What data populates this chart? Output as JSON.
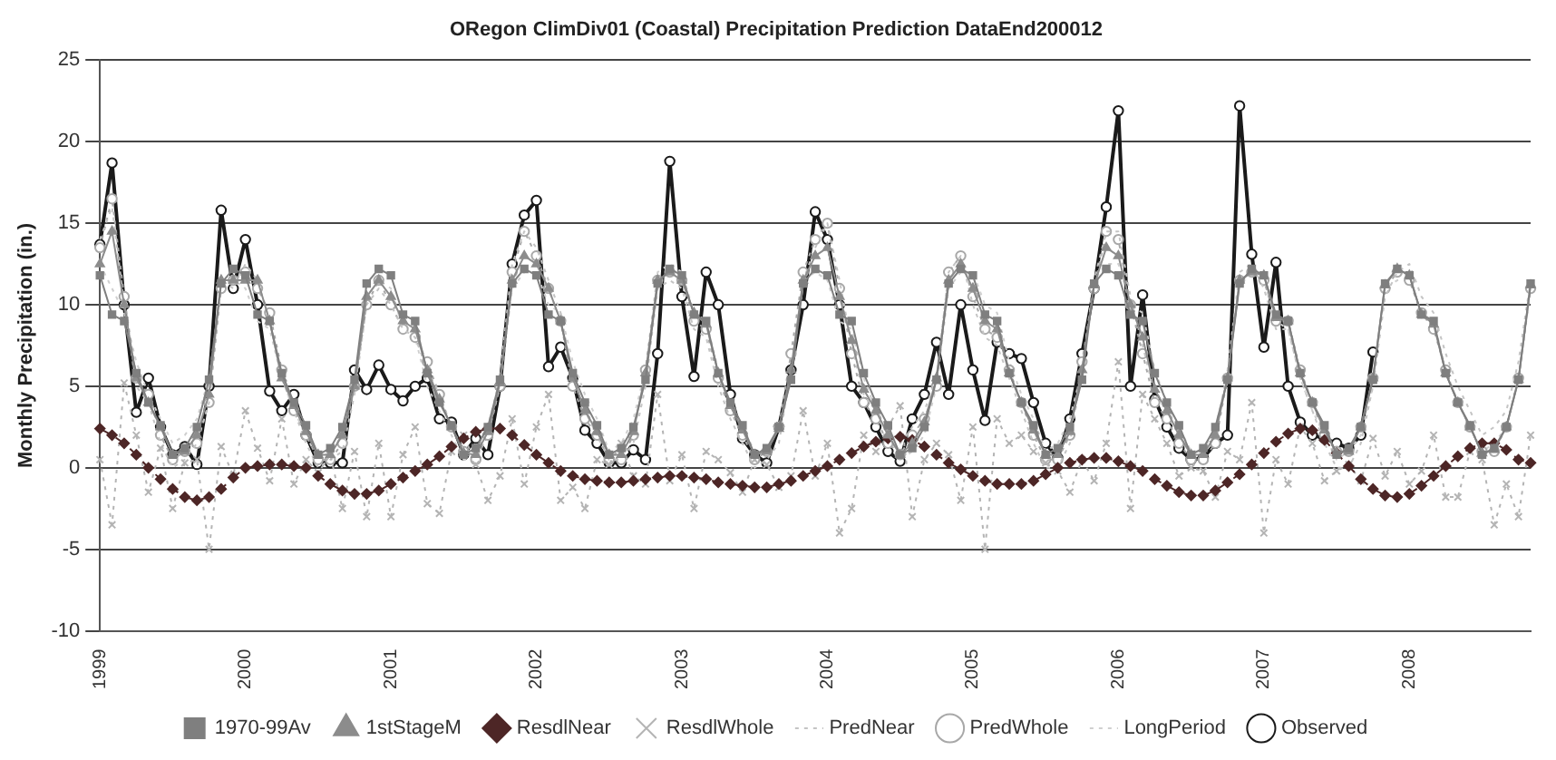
{
  "chart_data": {
    "type": "line",
    "title": "ORegon ClimDiv01 (Coastal) Precipitation Prediction DataEnd200012",
    "ylabel": "Monthly Precipitation (in.)",
    "categories": [
      "1999",
      null,
      null,
      null,
      null,
      null,
      null,
      null,
      null,
      null,
      null,
      null,
      "2000",
      null,
      null,
      null,
      null,
      null,
      null,
      null,
      null,
      null,
      null,
      null,
      "2001",
      null,
      null,
      null,
      null,
      null,
      null,
      null,
      null,
      null,
      null,
      null,
      "2002",
      null,
      null,
      null,
      null,
      null,
      null,
      null,
      null,
      null,
      null,
      null,
      "2003",
      null,
      null,
      null,
      null,
      null,
      null,
      null,
      null,
      null,
      null,
      null,
      "2004",
      null,
      null,
      null,
      null,
      null,
      null,
      null,
      null,
      null,
      null,
      null,
      "2005",
      null,
      null,
      null,
      null,
      null,
      null,
      null,
      null,
      null,
      null,
      null,
      "2006",
      null,
      null,
      null,
      null,
      null,
      null,
      null,
      null,
      null,
      null,
      null,
      "2007",
      null,
      null,
      null,
      null,
      null,
      null,
      null,
      null,
      null,
      null,
      null,
      "2008",
      null,
      null,
      null,
      null,
      null,
      null,
      null,
      null,
      null,
      null
    ],
    "ylim": [
      -10,
      25
    ],
    "yticks": [
      -10,
      -5,
      0,
      5,
      10,
      15,
      20,
      25
    ],
    "grid": "y",
    "legend": "bottom",
    "series": [
      {
        "name": "1970-99Av",
        "color": "#7f7f7f",
        "marker": "square",
        "line_style": "solid",
        "values": [
          11.8,
          9.4,
          9.0,
          5.8,
          4.0,
          2.6,
          0.8,
          1.2,
          2.5,
          5.4,
          11.3,
          12.2,
          11.8,
          9.4,
          9.0,
          5.8,
          4.0,
          2.6,
          0.8,
          1.2,
          2.5,
          5.4,
          11.3,
          12.2,
          11.8,
          9.4,
          9.0,
          5.8,
          4.0,
          2.6,
          0.8,
          1.2,
          2.5,
          5.4,
          11.3,
          12.2,
          11.8,
          9.4,
          9.0,
          5.8,
          4.0,
          2.6,
          0.8,
          1.2,
          2.5,
          5.4,
          11.3,
          12.2,
          11.8,
          9.4,
          9.0,
          5.8,
          4.0,
          2.6,
          0.8,
          1.2,
          2.5,
          5.4,
          11.3,
          12.2,
          11.8,
          9.4,
          9.0,
          5.8,
          4.0,
          2.6,
          0.8,
          1.2,
          2.5,
          5.4,
          11.3,
          12.2,
          11.8,
          9.4,
          9.0,
          5.8,
          4.0,
          2.6,
          0.8,
          1.2,
          2.5,
          5.4,
          11.3,
          12.2,
          11.8,
          9.4,
          9.0,
          5.8,
          4.0,
          2.6,
          0.8,
          1.2,
          2.5,
          5.4,
          11.3,
          12.2,
          11.8,
          9.4,
          9.0,
          5.8,
          4.0,
          2.6,
          0.8,
          1.2,
          2.5,
          5.4,
          11.3,
          12.2,
          11.8,
          9.4,
          9.0,
          5.8,
          4.0,
          2.6,
          0.8,
          1.2,
          2.5,
          5.4,
          11.3
        ]
      },
      {
        "name": "1stStageM",
        "color": "#8c8c8c",
        "marker": "triangle",
        "line_style": "solid",
        "values": [
          12.5,
          14.5,
          10.0,
          5.5,
          4.0,
          2.5,
          0.8,
          1.0,
          2.0,
          4.5,
          11.5,
          11.5,
          11.5,
          11.5,
          9.0,
          5.5,
          3.8,
          2.2,
          0.8,
          0.8,
          2.0,
          5.0,
          10.5,
          11.5,
          10.5,
          9.0,
          8.5,
          6.0,
          4.2,
          2.5,
          0.9,
          0.8,
          2.2,
          5.2,
          11.5,
          13.0,
          12.5,
          11.0,
          9.0,
          5.5,
          3.5,
          2.2,
          0.8,
          0.8,
          2.2,
          5.8,
          11.5,
          12.0,
          11.5,
          9.5,
          8.8,
          5.8,
          3.8,
          2.3,
          0.8,
          1.0,
          2.4,
          6.0,
          11.5,
          13.0,
          13.5,
          10.5,
          7.8,
          4.8,
          3.5,
          2.0,
          0.8,
          1.5,
          2.8,
          5.5,
          11.5,
          12.5,
          11.0,
          9.0,
          8.5,
          5.8,
          4.0,
          2.3,
          0.8,
          0.8,
          2.2,
          6.0,
          11.2,
          13.5,
          13.0,
          10.0,
          8.0,
          4.8,
          3.5,
          2.0,
          0.8,
          0.8,
          2.0,
          5.5,
          11.5,
          12.0,
          11.8,
          9.2,
          9.0,
          5.8,
          4.0,
          2.3,
          0.9,
          1.0,
          2.5,
          5.5,
          11.2,
          12.2,
          11.8,
          9.4,
          8.8,
          5.8,
          4.0,
          2.5,
          0.9,
          1.1,
          2.5,
          5.4,
          11.2
        ]
      },
      {
        "name": "ResdlNear",
        "color": "#4d2626",
        "marker": "diamond",
        "line_style": "dashed",
        "values": [
          2.4,
          2.0,
          1.5,
          0.8,
          0,
          -0.7,
          -1.3,
          -1.8,
          -2.0,
          -1.8,
          -1.3,
          -0.6,
          0,
          0.1,
          0.2,
          0.2,
          0.1,
          0,
          -0.5,
          -1.0,
          -1.4,
          -1.6,
          -1.6,
          -1.4,
          -1.0,
          -0.6,
          -0.2,
          0.2,
          0.7,
          1.3,
          1.8,
          2.2,
          2.4,
          2.4,
          2.0,
          1.4,
          0.8,
          0.3,
          -0.2,
          -0.5,
          -0.7,
          -0.8,
          -0.9,
          -0.9,
          -0.8,
          -0.7,
          -0.6,
          -0.5,
          -0.5,
          -0.6,
          -0.7,
          -0.9,
          -1.0,
          -1.1,
          -1.2,
          -1.2,
          -1.0,
          -0.8,
          -0.5,
          -0.2,
          0.1,
          0.5,
          0.9,
          1.3,
          1.6,
          1.8,
          1.9,
          1.7,
          1.3,
          0.8,
          0.3,
          -0.1,
          -0.5,
          -0.8,
          -1.0,
          -1.0,
          -1.0,
          -0.8,
          -0.4,
          0,
          0.3,
          0.5,
          0.6,
          0.6,
          0.4,
          0.1,
          -0.2,
          -0.7,
          -1.1,
          -1.5,
          -1.7,
          -1.7,
          -1.4,
          -0.9,
          -0.4,
          0.2,
          0.9,
          1.6,
          2.1,
          2.4,
          2.3,
          1.7,
          0.9,
          0.1,
          -0.7,
          -1.3,
          -1.7,
          -1.8,
          -1.6,
          -1.1,
          -0.5,
          0.1,
          0.7,
          1.2,
          1.5,
          1.5,
          1.1,
          0.5,
          0.3
        ]
      },
      {
        "name": "ResdlWhole",
        "color": "#b4b4b4",
        "marker": "cross",
        "line_style": "dotted",
        "values": [
          0.5,
          -3.5,
          5.2,
          2.0,
          -1.5,
          1.2,
          -2.5,
          0.3,
          0.5,
          -5.0,
          1.3,
          -0.5,
          3.5,
          1.2,
          -0.8,
          3.0,
          -1.0,
          0.5,
          -0.3,
          0.8,
          -2.5,
          1.0,
          -3.0,
          1.5,
          -3.0,
          0.8,
          2.5,
          -2.2,
          -2.8,
          1.0,
          2.0,
          0.2,
          -2.0,
          -0.5,
          3.0,
          -1.0,
          2.5,
          4.5,
          -2.0,
          -1.2,
          -2.5,
          0.5,
          0.2,
          1.5,
          -0.5,
          -1.0,
          4.5,
          -0.8,
          0.8,
          -2.5,
          1.0,
          0.5,
          -0.3,
          -1.5,
          0.5,
          0.2,
          -1.2,
          -0.5,
          3.5,
          -0.5,
          1.5,
          -4.0,
          -2.5,
          2.0,
          1.0,
          2.5,
          3.8,
          -3.0,
          0.5,
          1.5,
          0.8,
          -2.0,
          2.5,
          -5.0,
          3.0,
          1.5,
          2.0,
          1.0,
          0.3,
          -0.2,
          -1.5,
          0.5,
          -0.8,
          1.5,
          6.5,
          -2.5,
          4.5,
          3.0,
          1.5,
          -0.5,
          0.0,
          -0.2,
          -1.8,
          1.0,
          0.5,
          4.0,
          -4.0,
          0.5,
          -1.0,
          2.5,
          1.5,
          -0.8,
          -0.2,
          0.2,
          -0.8,
          1.8,
          -0.5,
          1.0,
          -1.0,
          -0.2,
          2.0,
          -1.8,
          -1.8,
          1.0,
          0.5,
          -3.5,
          -1.0,
          -3.0,
          2.0
        ]
      },
      {
        "name": "PredNear",
        "color": "#c4c4c4",
        "marker": "none",
        "line_style": "dotted",
        "values": [
          14.0,
          16.0,
          10.0,
          5.0,
          4.0,
          1.5,
          0.0,
          0.5,
          1.5,
          4.0,
          11.5,
          11.0,
          12.5,
          11.5,
          9.0,
          5.5,
          3.5,
          1.5,
          0.0,
          0.5,
          1.0,
          4.5,
          10.0,
          11.0,
          10.0,
          8.5,
          8.0,
          6.0,
          4.5,
          2.5,
          1.0,
          1.0,
          2.5,
          5.5,
          12.5,
          14.5,
          13.5,
          11.5,
          9.5,
          5.5,
          3.5,
          2.0,
          0.5,
          0.5,
          1.5,
          5.0,
          11.0,
          11.5,
          11.0,
          8.5,
          8.0,
          5.0,
          3.0,
          1.5,
          0.0,
          0.5,
          1.5,
          6.0,
          11.5,
          13.5,
          15.0,
          11.5,
          7.5,
          4.5,
          3.5,
          2.5,
          1.5,
          2.5,
          3.5,
          5.5,
          12.0,
          13.0,
          10.0,
          8.0,
          7.5,
          5.5,
          3.5,
          1.5,
          0.0,
          0.0,
          1.5,
          6.0,
          11.5,
          14.5,
          14.5,
          10.5,
          7.5,
          4.5,
          3.5,
          2.0,
          1.0,
          1.0,
          2.0,
          6.0,
          12.0,
          12.5,
          11.0,
          8.5,
          8.5,
          5.5,
          3.5,
          1.5,
          0.0,
          0.0,
          1.5,
          5.0,
          10.5,
          12.0,
          12.5,
          10.5,
          9.5,
          7.0,
          5.0,
          3.5,
          2.0,
          2.5,
          3.5,
          6.5,
          11.5
        ]
      },
      {
        "name": "PredWhole",
        "color": "#a8a8a8",
        "marker": "circle",
        "line_style": "dotted",
        "values": [
          13.5,
          16.5,
          10.5,
          5.5,
          4.5,
          2.0,
          0.5,
          1.0,
          1.5,
          4.0,
          11.0,
          11.5,
          12.0,
          11.0,
          9.5,
          6.0,
          3.5,
          2.0,
          0.5,
          0.5,
          1.5,
          5.0,
          10.0,
          11.5,
          10.0,
          8.5,
          8.0,
          6.5,
          4.5,
          2.5,
          1.0,
          0.5,
          2.0,
          5.0,
          12.0,
          14.5,
          13.0,
          11.0,
          9.0,
          5.0,
          3.0,
          2.0,
          0.5,
          0.5,
          2.0,
          6.0,
          11.5,
          12.0,
          11.5,
          9.0,
          8.5,
          5.5,
          3.5,
          2.0,
          0.5,
          1.0,
          2.5,
          7.0,
          12.0,
          14.0,
          15.0,
          11.0,
          7.0,
          4.0,
          3.0,
          1.5,
          0.8,
          2.0,
          3.0,
          5.0,
          12.0,
          13.0,
          10.5,
          8.5,
          8.0,
          6.0,
          4.0,
          2.0,
          0.5,
          0.5,
          2.0,
          6.5,
          11.0,
          14.5,
          14.0,
          10.0,
          7.0,
          4.0,
          3.0,
          1.5,
          0.5,
          0.5,
          1.5,
          5.5,
          11.5,
          12.0,
          11.5,
          9.0,
          9.0,
          6.0,
          4.0,
          2.0,
          1.0,
          1.0,
          2.5,
          5.5,
          11.0,
          12.0,
          11.5,
          9.5,
          8.5,
          6.0,
          4.0,
          2.5,
          1.0,
          1.0,
          2.5,
          5.5,
          11.0
        ]
      },
      {
        "name": "LongPeriod",
        "color": "#cfcfcf",
        "marker": "none",
        "line_style": "dotted",
        "values": [
          12.5,
          11.0,
          9.5,
          6.5,
          4.5,
          3.0,
          1.5,
          2.0,
          3.0,
          5.5,
          11.0,
          11.5,
          11.0,
          9.0,
          8.5,
          5.5,
          3.5,
          2.0,
          0.5,
          1.0,
          2.0,
          5.0,
          10.5,
          11.5,
          11.0,
          8.5,
          8.0,
          5.0,
          3.5,
          2.0,
          0.5,
          0.5,
          2.0,
          5.0,
          11.0,
          12.0,
          12.0,
          10.0,
          9.5,
          6.5,
          4.5,
          3.0,
          1.0,
          1.5,
          3.0,
          6.0,
          12.0,
          12.5,
          12.0,
          9.5,
          9.0,
          6.0,
          4.0,
          2.5,
          1.0,
          1.0,
          2.5,
          5.5,
          11.5,
          12.0,
          11.5,
          9.0,
          8.5,
          5.5,
          3.5,
          2.0,
          0.5,
          1.0,
          2.0,
          5.0,
          11.0,
          12.0,
          12.0,
          10.0,
          9.5,
          6.5,
          4.5,
          3.0,
          1.0,
          1.5,
          3.0,
          6.0,
          11.5,
          12.5,
          12.5,
          10.0,
          9.5,
          6.0,
          4.0,
          2.5,
          1.0,
          1.0,
          2.5,
          5.5,
          11.5,
          12.0,
          11.5,
          9.0,
          8.5,
          5.5,
          3.5,
          2.0,
          0.5,
          1.0,
          2.0,
          5.0,
          11.0,
          11.5,
          11.5,
          9.5,
          9.0,
          6.0,
          4.0,
          2.5,
          1.0,
          1.5,
          2.5,
          5.5,
          11.0
        ]
      },
      {
        "name": "Observed",
        "color": "#1a1a1a",
        "marker": "circle",
        "line_style": "solid",
        "values": [
          13.7,
          18.7,
          10.0,
          3.4,
          5.5,
          2.5,
          0.8,
          1.3,
          0.2,
          5.0,
          15.8,
          11.0,
          14.0,
          10.0,
          4.7,
          3.5,
          4.5,
          2.0,
          0.3,
          0.3,
          0.3,
          6.0,
          4.8,
          6.3,
          4.8,
          4.1,
          5.0,
          5.5,
          3.0,
          2.8,
          0.8,
          1.8,
          0.8,
          5.0,
          12.5,
          15.5,
          16.4,
          6.2,
          7.4,
          5.5,
          2.3,
          1.5,
          0.3,
          0.3,
          1.1,
          0.5,
          7.0,
          18.8,
          10.5,
          5.6,
          12.0,
          10.0,
          4.5,
          1.8,
          0.8,
          0.3,
          2.5,
          6.0,
          10.0,
          15.7,
          14.0,
          10.0,
          5.0,
          4.0,
          2.5,
          1.0,
          0.4,
          3.0,
          4.5,
          7.7,
          4.5,
          10.0,
          6.0,
          2.9,
          7.7,
          7.0,
          6.7,
          4.0,
          1.5,
          0.6,
          3.0,
          7.0,
          11.0,
          16.0,
          21.9,
          5.0,
          10.6,
          4.2,
          2.5,
          1.2,
          0.5,
          0.6,
          1.5,
          2.0,
          22.2,
          13.1,
          7.4,
          12.6,
          5.0,
          2.8,
          2.0,
          1.8,
          1.5,
          1.2,
          2.0,
          7.1,
          null,
          null,
          null,
          null,
          null,
          null,
          null,
          null,
          null,
          null,
          null,
          null,
          null
        ]
      }
    ]
  }
}
